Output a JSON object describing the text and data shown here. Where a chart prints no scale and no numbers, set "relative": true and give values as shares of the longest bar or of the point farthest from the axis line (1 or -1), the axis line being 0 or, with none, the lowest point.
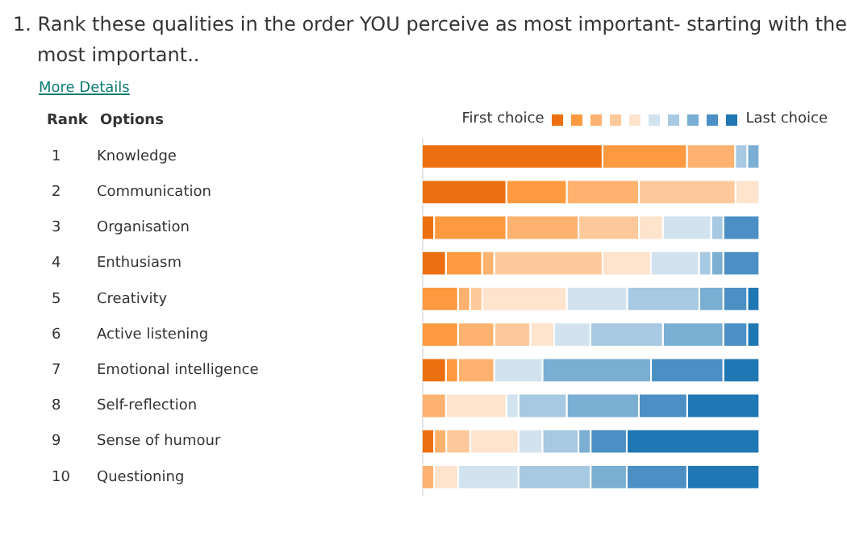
{
  "chart_data": {
    "type": "bar",
    "orientation": "horizontal",
    "stacked": true,
    "relative": true,
    "legend": "top right",
    "title": "1. Rank these qualities in the order YOU perceive as most important- starting with the most important..",
    "categories": [
      "Knowledge",
      "Communication",
      "Organisation",
      "Enthusiasm",
      "Creativity",
      "Active listening",
      "Emotional intelligence",
      "Self-reflection",
      "Sense of humour",
      "Questioning"
    ],
    "series": [
      {
        "name": "First choice",
        "color": "#ed7010",
        "values": [
          0.535,
          0.25,
          0.036,
          0.071,
          0,
          0,
          0.071,
          0,
          0.036,
          0
        ]
      },
      {
        "color": "#fd9a40",
        "values": [
          0.25,
          0.179,
          0.214,
          0.107,
          0.107,
          0.107,
          0.036,
          0,
          0,
          0
        ]
      },
      {
        "color": "#fdb26f",
        "values": [
          0.143,
          0.214,
          0.214,
          0.036,
          0.036,
          0.107,
          0.107,
          0.071,
          0.036,
          0.036
        ]
      },
      {
        "color": "#fec99a",
        "values": [
          0,
          0.286,
          0.179,
          0.321,
          0.036,
          0.107,
          0,
          0,
          0.071,
          0
        ]
      },
      {
        "color": "#fee3cd",
        "values": [
          0,
          0.071,
          0.071,
          0.143,
          0.25,
          0.071,
          0,
          0.179,
          0.143,
          0.071
        ]
      },
      {
        "color": "#d2e3ef",
        "values": [
          0,
          0,
          0.143,
          0.143,
          0.179,
          0.107,
          0.143,
          0.036,
          0.071,
          0.179
        ]
      },
      {
        "color": "#a7c9e2",
        "values": [
          0.036,
          0,
          0.036,
          0.036,
          0.214,
          0.215,
          0,
          0.143,
          0.107,
          0.214
        ]
      },
      {
        "color": "#7aaed2",
        "values": [
          0.036,
          0,
          0,
          0.036,
          0.071,
          0.179,
          0.322,
          0.214,
          0.036,
          0.107
        ]
      },
      {
        "color": "#4b8fc4",
        "values": [
          0,
          0,
          0.107,
          0.107,
          0.071,
          0.071,
          0.214,
          0.143,
          0.107,
          0.179
        ]
      },
      {
        "name": "Last choice",
        "color": "#1f77b4",
        "values": [
          0,
          0,
          0,
          0,
          0.036,
          0.036,
          0.107,
          0.214,
          0.393,
          0.214
        ]
      }
    ],
    "annotations": [
      "More Details",
      "Rank",
      "Options",
      "1",
      "2",
      "3",
      "4",
      "5",
      "6",
      "7",
      "8",
      "9",
      "10"
    ]
  }
}
